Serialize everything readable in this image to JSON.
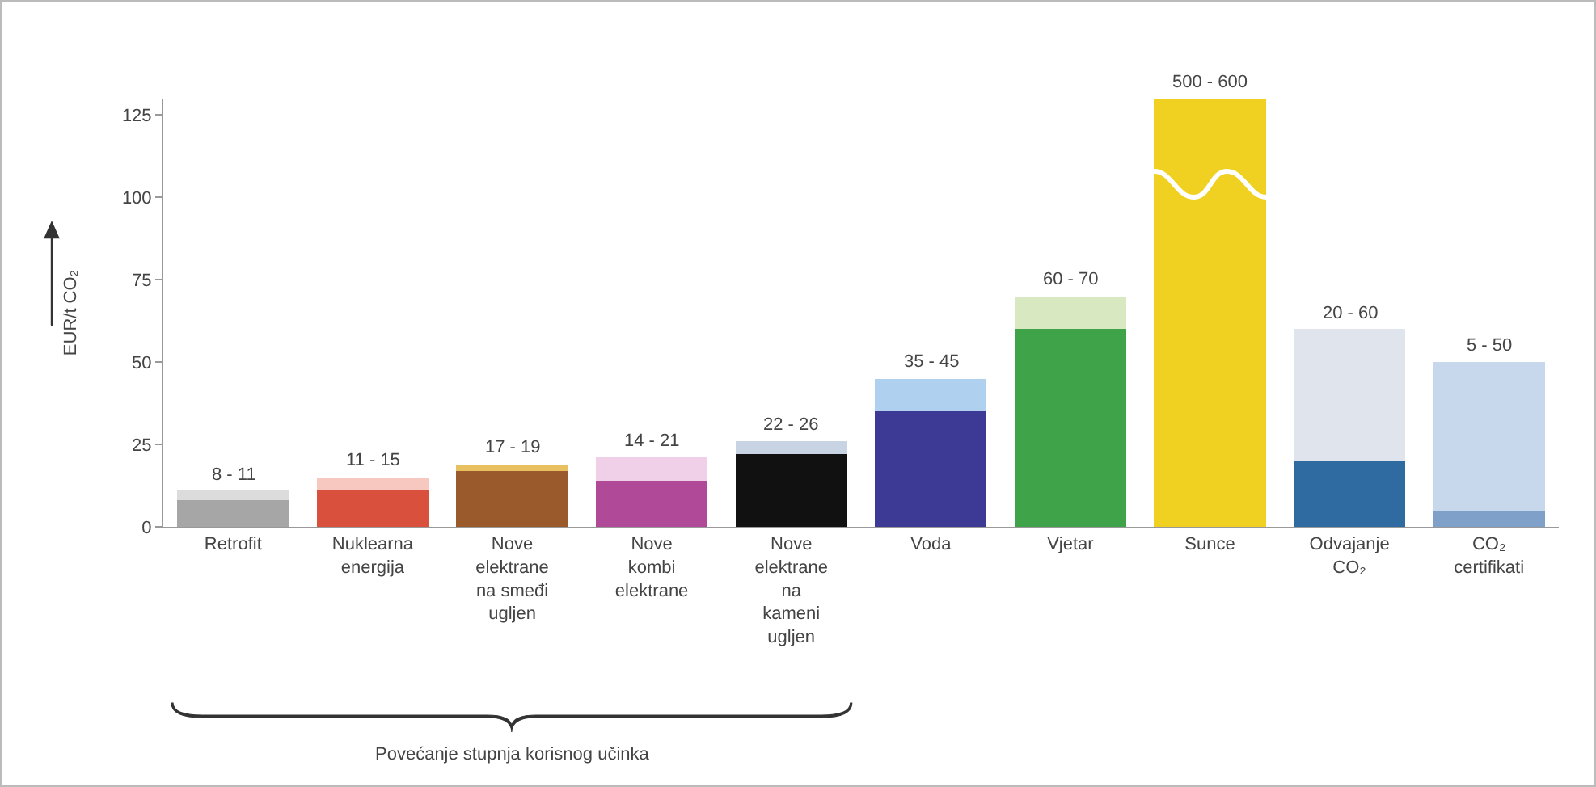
{
  "chart_data": {
    "type": "bar",
    "stacked": true,
    "ylabel": "EUR/t CO₂",
    "categories": [
      "Retrofit",
      "Nuklearna\nenergija",
      "Nove\nelektrane\nna smeđi\nugljen",
      "Nove\nkombi\nelektrane",
      "Nove\nelektrane\nna\nkameni\nugljen",
      "Voda",
      "Vjetar",
      "Sunce",
      "Odvajanje\nCO₂",
      "CO₂\ncertifikati"
    ],
    "series": [
      {
        "colors": [
          "#a6a6a6",
          "#d9503c",
          "#9a5a2c",
          "#b04a98",
          "#111111",
          "#3d3a96",
          "#3fa34a",
          "#f0d020",
          "#2f6aa0",
          "#7fa0c8"
        ],
        "values": [
          8,
          11,
          17,
          14,
          22,
          35,
          60,
          130,
          20,
          5
        ]
      },
      {
        "colors": [
          "#dcdcdc",
          "#f6c8c0",
          "#e8c060",
          "#f0d0e8",
          "#c8d4e4",
          "#b0d0f0",
          "#d8e8c0",
          "#f0d020",
          "#e0e4ec",
          "#c8d8ec"
        ],
        "values": [
          3,
          4,
          2,
          7,
          4,
          10,
          10,
          null,
          40,
          45
        ]
      }
    ],
    "ylim": [
      0,
      130
    ],
    "yticks": [
      0,
      25,
      50,
      75,
      100,
      125
    ],
    "grid": false,
    "annotations": [
      {
        "text": "8 - 11",
        "x": "Retrofit",
        "y": 11
      },
      {
        "text": "11 - 15",
        "x": "Nuklearna\nenergija",
        "y": 15
      },
      {
        "text": "17 - 19",
        "x": "Nove\nelektrane\nna smeđi\nugljen",
        "y": 19
      },
      {
        "text": "14 - 21",
        "x": "Nove\nkombi\nelektrane",
        "y": 21
      },
      {
        "text": "22 - 26",
        "x": "Nove\nelektrane\nna\nkameni\nugljen",
        "y": 26
      },
      {
        "text": "35 - 45",
        "x": "Voda",
        "y": 45
      },
      {
        "text": "60 - 70",
        "x": "Vjetar",
        "y": 70
      },
      {
        "text": "500 - 600",
        "x": "Sunce",
        "y": 130
      },
      {
        "text": "20 - 60",
        "x": "Odvajanje\nCO₂",
        "y": 60
      },
      {
        "text": "5 - 50",
        "x": "CO₂\ncertifikati",
        "y": 50
      },
      "Povećanje stupnja korisnog učinka"
    ]
  }
}
